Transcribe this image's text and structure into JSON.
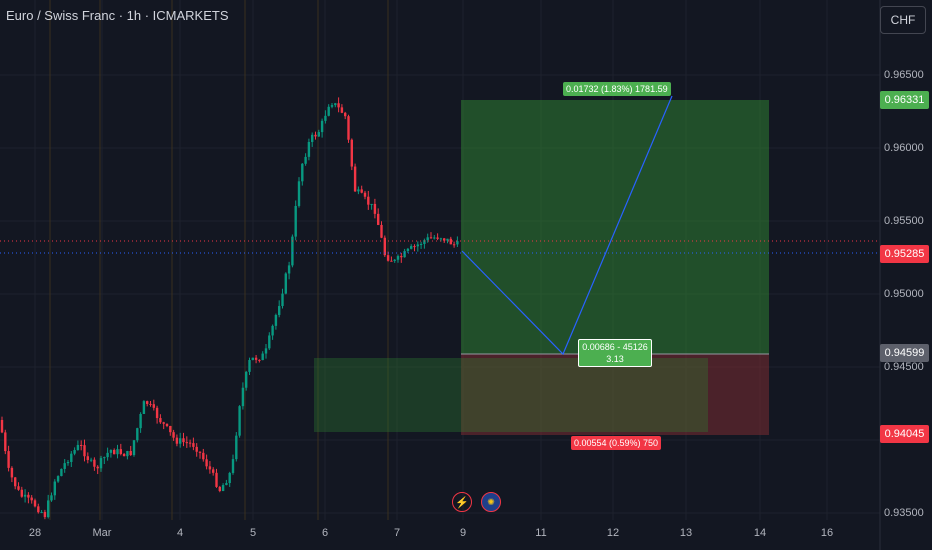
{
  "header": {
    "symbol_title": "Euro / Swiss Franc · 1h · ICMARKETS",
    "currency_label": "CHF"
  },
  "price_axis": {
    "ticks": [
      "0.96500",
      "0.96000",
      "0.95500",
      "0.95000",
      "0.94500",
      "0.94000",
      "0.93500"
    ]
  },
  "time_axis": {
    "ticks": [
      "28",
      "Mar",
      "4",
      "5",
      "6",
      "7",
      "9",
      "11",
      "12",
      "13",
      "14",
      "16"
    ]
  },
  "price_tags": {
    "target": "0.96331",
    "current": "0.95285",
    "entry": "0.94599",
    "stop": "0.94045"
  },
  "position": {
    "target_label": "0.01732 (1.83%) 1781.59",
    "entry_label_line1": "0.00686 - 45126",
    "entry_label_line2": "3.13",
    "stop_label": "0.00554 (0.59%) 750"
  },
  "events": {
    "left_icon": "lightning-icon",
    "right_icon": "eu-flag-icon"
  },
  "colors": {
    "background": "#131722",
    "up_candle": "#089981",
    "down_candle": "#f23645",
    "target_green": "#4caf50",
    "stop_red": "#f23645",
    "entry_gray": "#5d606b",
    "projection_blue": "#2962ff"
  }
}
